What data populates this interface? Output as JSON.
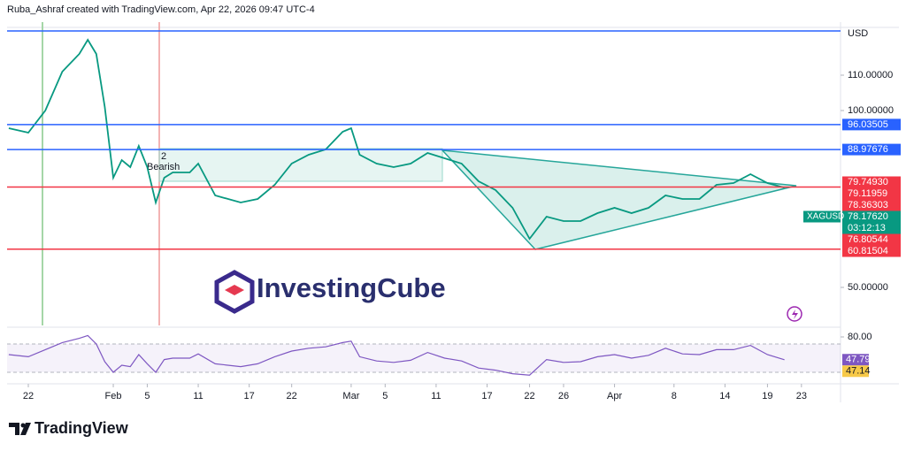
{
  "header": "Ruba_Ashraf created with TradingView.com, Apr 22, 2026 09:47 UTC-4",
  "watermark": "InvestingCube",
  "footer": "TradingView",
  "chart_data": {
    "type": "line",
    "currency": "USD",
    "annotations": [
      "2",
      "Bearish"
    ],
    "xlim": [
      19.5,
      117.6
    ],
    "xticks": [
      22,
      {
        "value": 32,
        "label": "Feb"
      },
      {
        "value": 36,
        "label": "5"
      },
      {
        "value": 42,
        "label": "11"
      },
      {
        "value": 48,
        "label": "17"
      },
      {
        "value": 53,
        "label": "22"
      },
      {
        "value": 60,
        "label": "Mar"
      },
      {
        "value": 64,
        "label": "5"
      },
      {
        "value": 70,
        "label": "11"
      },
      {
        "value": 76,
        "label": "17"
      },
      {
        "value": 81,
        "label": "22"
      },
      {
        "value": 85,
        "label": "26"
      },
      {
        "value": 91,
        "label": "Apr"
      },
      {
        "value": 98,
        "label": "8"
      },
      {
        "value": 104,
        "label": "14"
      },
      {
        "value": 109,
        "label": "19"
      },
      {
        "value": 113,
        "label": "23"
      }
    ],
    "ylim": [
      40,
      125
    ],
    "yticks": [
      {
        "value": 50,
        "label": "50.00000"
      },
      {
        "value": 100,
        "label": "100.00000"
      },
      {
        "value": 110,
        "label": "110.00000"
      }
    ],
    "x": [
      19.7,
      22,
      24,
      26,
      28,
      29,
      30,
      31,
      32,
      33,
      34,
      35,
      36,
      37,
      38,
      39,
      41,
      42,
      44,
      47,
      49,
      51,
      53,
      55,
      57,
      59,
      60,
      61,
      63,
      65,
      67,
      69,
      71,
      73,
      75,
      77,
      79,
      81,
      83,
      85,
      87,
      89,
      91,
      93,
      95,
      97,
      99,
      101,
      103,
      105,
      107,
      109,
      111
    ],
    "series": [
      {
        "color": "#089981",
        "values": [
          95,
          93.75,
          100,
          111,
          116,
          120,
          116,
          101,
          81,
          86,
          84,
          90,
          84,
          74,
          81,
          82.5,
          82.5,
          85,
          76,
          74,
          75,
          79,
          85,
          87.5,
          89,
          94,
          95,
          87.5,
          85,
          84,
          85,
          88,
          86.5,
          85,
          80,
          77.5,
          72.5,
          63.75,
          70,
          68.75,
          68.75,
          71,
          72.5,
          71,
          72.5,
          76,
          75,
          75,
          79,
          79.5,
          82,
          79.5,
          78.2
        ]
      }
    ],
    "lines": [
      {
        "value": 122.5,
        "color": "#2962ff"
      }
    ],
    "price_tags": [
      {
        "value": 96.03505,
        "label": "96.03505",
        "color": "#2962ff",
        "line": true
      },
      {
        "value": 88.97676,
        "label": "88.97676",
        "color": "#2962ff",
        "line": true
      },
      {
        "value": 79.7493,
        "label": "79.74930",
        "color": "#f23645",
        "line": false
      },
      {
        "value": 79.11959,
        "label": "79.11959",
        "color": "#f23645",
        "line": false
      },
      {
        "value": 78.36303,
        "label": "78.36303",
        "color": "#f23645",
        "line": true
      },
      {
        "value": 78.1762,
        "label": "78.17620",
        "color": "#089981",
        "line": false,
        "symbol": "XAGUSD",
        "countdown": "03:12:13"
      },
      {
        "value": 76.80544,
        "label": "76.80544",
        "color": "#f23645",
        "line": false
      },
      {
        "value": 60.81504,
        "label": "60.81504",
        "color": "#f23645",
        "line": true
      }
    ],
    "rsi": {
      "ylim": [
        16.25,
        90
      ],
      "yticks": [
        {
          "value": 80,
          "label": "80.00"
        }
      ],
      "band": [
        70,
        30
      ],
      "color": "#7e57c2",
      "values": [
        55,
        52,
        62,
        72,
        78,
        82,
        70,
        45,
        30,
        40,
        38,
        55,
        42,
        30,
        48,
        50,
        50,
        56,
        42,
        38,
        42,
        52,
        60,
        64,
        66,
        72,
        74,
        52,
        46,
        44,
        47,
        58,
        50,
        46,
        36,
        33,
        28,
        26,
        48,
        44,
        45,
        52,
        55,
        50,
        54,
        64,
        56,
        55,
        62,
        62,
        68,
        55,
        47.79
      ],
      "signal_tag": 47.14,
      "signal_color": "#f7c948"
    }
  }
}
